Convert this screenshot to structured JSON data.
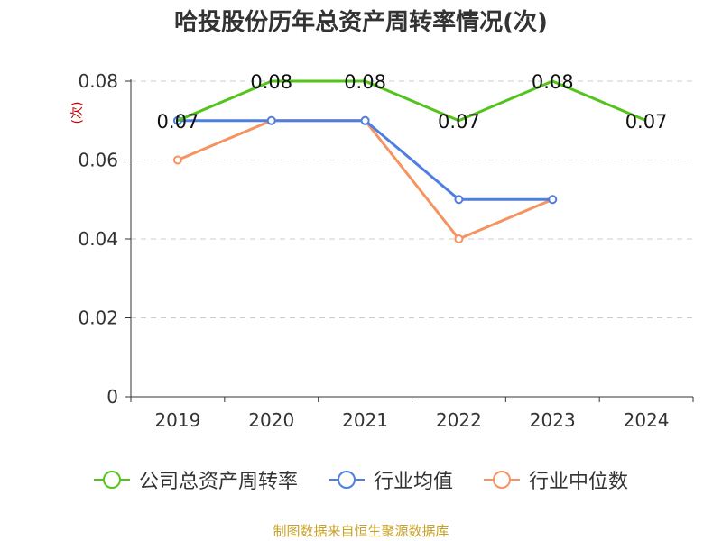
{
  "chart_data": {
    "type": "line",
    "title": "哈投股份历年总资产周转率情况(次)",
    "ylabel": "(次)",
    "xlabel": "",
    "categories": [
      "2019",
      "2020",
      "2021",
      "2022",
      "2023",
      "2024"
    ],
    "ylim": [
      0,
      0.08
    ],
    "yticks": [
      "0",
      "0.02",
      "0.04",
      "0.06",
      "0.08"
    ],
    "grid": true,
    "legend_position": "bottom",
    "series": [
      {
        "name": "公司总资产周转率",
        "color": "#52c41a",
        "values": [
          0.07,
          0.08,
          0.08,
          0.07,
          0.08,
          0.07
        ],
        "labels": [
          "0.07",
          "0.08",
          "0.08",
          "0.07",
          "0.08",
          "0.07"
        ]
      },
      {
        "name": "行业均值",
        "color": "#4e7fe0",
        "values": [
          0.07,
          0.07,
          0.07,
          0.05,
          0.05,
          null
        ]
      },
      {
        "name": "行业中位数",
        "color": "#f59361",
        "values": [
          0.06,
          0.07,
          0.07,
          0.04,
          0.05,
          null
        ]
      }
    ]
  },
  "source": "制图数据来自恒生聚源数据库"
}
